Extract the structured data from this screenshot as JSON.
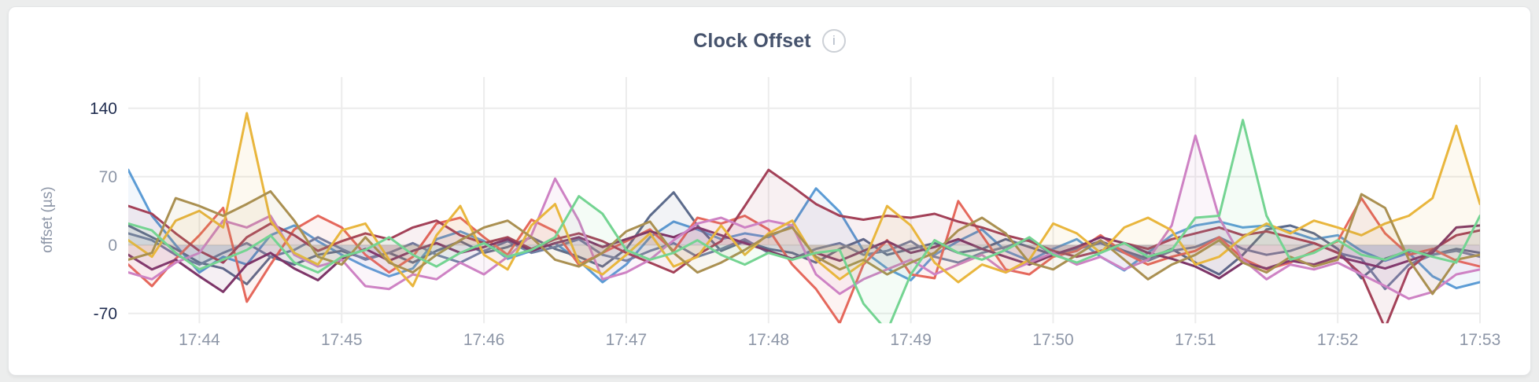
{
  "header": {
    "title": "Clock Offset",
    "info_icon_glyph": "i"
  },
  "page": {
    "background_color": "#eceded",
    "card_color": "#ffffff"
  },
  "chart_data": {
    "type": "line",
    "title": "Clock Offset",
    "xlabel": "",
    "ylabel": "offset (µs)",
    "grid": true,
    "legend": "none",
    "area_fill": true,
    "area_fill_opacity": 0.08,
    "grid_color": "#ececec",
    "x_start_time": "17:43:30",
    "x_interval_seconds": 10,
    "x_ticks": [
      {
        "t": 30,
        "label": "17:44"
      },
      {
        "t": 90,
        "label": "17:45"
      },
      {
        "t": 150,
        "label": "17:46"
      },
      {
        "t": 210,
        "label": "17:47"
      },
      {
        "t": 270,
        "label": "17:48"
      },
      {
        "t": 330,
        "label": "17:49"
      },
      {
        "t": 390,
        "label": "17:50"
      },
      {
        "t": 450,
        "label": "17:51"
      },
      {
        "t": 510,
        "label": "17:52"
      },
      {
        "t": 570,
        "label": "17:53"
      }
    ],
    "y_ticks": [
      {
        "value": 140,
        "label": "140",
        "strong": true
      },
      {
        "value": 70,
        "label": "70",
        "strong": false
      },
      {
        "value": 0,
        "label": "0",
        "strong": false
      },
      {
        "value": -70,
        "label": "-70",
        "strong": true
      }
    ],
    "ylim_visible": [
      -80,
      172
    ],
    "tick_color_strong": "#1f2c4f",
    "tick_color_normal": "#8d96a7",
    "series": [
      {
        "name": "series-1-blue",
        "color": "#5c9cd5",
        "values": [
          77,
          30,
          0,
          -28,
          -12,
          -20,
          10,
          20,
          4,
          -10,
          -22,
          -32,
          -24,
          6,
          14,
          4,
          -14,
          -6,
          2,
          -16,
          -38,
          -20,
          8,
          24,
          16,
          6,
          12,
          8,
          20,
          58,
          34,
          -6,
          -24,
          -36,
          -10,
          4,
          16,
          -6,
          -16,
          -4,
          6,
          -12,
          -26,
          -8,
          10,
          20,
          24,
          18,
          20,
          14,
          6,
          10,
          -6,
          -16,
          -8,
          -32,
          -44,
          -38
        ]
      },
      {
        "name": "series-2-slate",
        "color": "#5c6b8c",
        "values": [
          20,
          8,
          -4,
          -18,
          -24,
          -40,
          -12,
          -20,
          -10,
          -6,
          -14,
          -8,
          -18,
          -6,
          4,
          -8,
          -2,
          8,
          -4,
          -12,
          -22,
          -4,
          30,
          54,
          20,
          -6,
          4,
          -4,
          -8,
          -18,
          -4,
          6,
          -10,
          -4,
          2,
          -8,
          -4,
          6,
          -2,
          -10,
          -4,
          4,
          -6,
          -14,
          -4,
          -18,
          -30,
          -10,
          16,
          20,
          12,
          -4,
          -34,
          -14,
          -6,
          -10,
          -4,
          -8
        ]
      },
      {
        "name": "series-3-steel",
        "color": "#6f7fa3",
        "values": [
          12,
          5,
          -10,
          -20,
          -8,
          2,
          -12,
          -5,
          8,
          -4,
          -15,
          -8,
          2,
          -10,
          -18,
          -6,
          4,
          -8,
          -2,
          6,
          -10,
          -16,
          -6,
          2,
          -12,
          -4,
          6,
          -8,
          -14,
          -4,
          2,
          -10,
          -6,
          4,
          -12,
          -18,
          -8,
          -2,
          6,
          -10,
          -4,
          2,
          -8,
          -16,
          -6,
          -2,
          8,
          -4,
          -10,
          -6,
          2,
          -8,
          -14,
          -45,
          -20,
          -10,
          -6,
          -12
        ]
      },
      {
        "name": "series-4-red",
        "color": "#e5685c",
        "values": [
          -20,
          -42,
          -14,
          10,
          38,
          -58,
          -20,
          16,
          30,
          18,
          -10,
          -28,
          -12,
          22,
          28,
          8,
          -10,
          26,
          14,
          -20,
          -8,
          4,
          16,
          -6,
          28,
          22,
          30,
          16,
          -20,
          -45,
          -80,
          -20,
          5,
          -30,
          -34,
          45,
          10,
          -25,
          -30,
          -12,
          -6,
          10,
          -8,
          -20,
          -12,
          -6,
          8,
          -14,
          -25,
          -18,
          -6,
          4,
          48,
          12,
          -10,
          -4,
          -16,
          -22
        ]
      },
      {
        "name": "series-5-maroon",
        "color": "#a34158",
        "values": [
          40,
          32,
          12,
          -6,
          -18,
          8,
          22,
          10,
          -6,
          4,
          12,
          6,
          18,
          25,
          10,
          2,
          8,
          -4,
          6,
          12,
          4,
          -8,
          -18,
          -28,
          -10,
          4,
          40,
          77,
          60,
          42,
          30,
          26,
          30,
          28,
          32,
          24,
          18,
          10,
          4,
          -6,
          -12,
          -6,
          2,
          -4,
          6,
          12,
          18,
          10,
          14,
          8,
          2,
          -8,
          -30,
          -85,
          -25,
          -5,
          10,
          15
        ]
      },
      {
        "name": "series-6-plum",
        "color": "#7d3568",
        "values": [
          -10,
          -25,
          -15,
          -32,
          -48,
          -20,
          -8,
          -24,
          -36,
          -14,
          -4,
          -16,
          -6,
          2,
          -8,
          -2,
          6,
          -6,
          2,
          8,
          -2,
          6,
          14,
          8,
          18,
          10,
          2,
          -6,
          -14,
          -8,
          -16,
          -6,
          4,
          -8,
          -2,
          6,
          -4,
          -12,
          -20,
          -10,
          -2,
          8,
          2,
          -8,
          -14,
          -22,
          -34,
          -18,
          -24,
          -16,
          -20,
          -12,
          -18,
          -24,
          -16,
          -8,
          18,
          20
        ]
      },
      {
        "name": "series-7-pink",
        "color": "#ce82c4",
        "values": [
          -28,
          -35,
          -18,
          -8,
          25,
          18,
          30,
          -10,
          -22,
          -15,
          -42,
          -45,
          -30,
          -35,
          -18,
          -30,
          -12,
          10,
          68,
          25,
          -35,
          -28,
          -15,
          5,
          22,
          28,
          18,
          25,
          20,
          -30,
          -50,
          -35,
          -25,
          -15,
          -30,
          -20,
          -10,
          -28,
          -18,
          -8,
          -20,
          -12,
          -25,
          -15,
          20,
          112,
          28,
          -15,
          -35,
          -20,
          -25,
          -18,
          -30,
          -42,
          -55,
          -48,
          -30,
          -25
        ]
      },
      {
        "name": "series-8-gold",
        "color": "#e9b63d",
        "values": [
          5,
          -12,
          25,
          35,
          18,
          135,
          25,
          -8,
          -20,
          15,
          22,
          -15,
          -42,
          10,
          40,
          -10,
          -25,
          20,
          42,
          -18,
          -30,
          -10,
          12,
          -22,
          -12,
          20,
          -10,
          12,
          25,
          -15,
          -35,
          -18,
          40,
          20,
          -18,
          -38,
          -20,
          -28,
          -15,
          22,
          12,
          -8,
          18,
          28,
          15,
          -20,
          -12,
          8,
          22,
          12,
          25,
          18,
          10,
          22,
          30,
          48,
          122,
          42
        ]
      },
      {
        "name": "series-9-olive",
        "color": "#aa9051",
        "values": [
          -15,
          -8,
          48,
          40,
          30,
          42,
          55,
          25,
          -12,
          -20,
          8,
          -18,
          -28,
          -10,
          5,
          18,
          25,
          8,
          -15,
          -22,
          -8,
          14,
          24,
          -8,
          -28,
          -18,
          -5,
          10,
          18,
          -12,
          -25,
          -15,
          -30,
          -18,
          -8,
          15,
          28,
          12,
          -18,
          -25,
          -10,
          5,
          -15,
          -35,
          -20,
          -10,
          5,
          -18,
          -28,
          -12,
          -22,
          -15,
          52,
          38,
          -15,
          -50,
          -15,
          -10
        ]
      },
      {
        "name": "series-10-green",
        "color": "#74d492",
        "values": [
          22,
          15,
          -8,
          -25,
          -15,
          -5,
          10,
          -18,
          -28,
          -12,
          -5,
          8,
          -10,
          -22,
          -8,
          2,
          -12,
          -5,
          8,
          50,
          32,
          -5,
          -15,
          -8,
          5,
          -10,
          -20,
          -8,
          -15,
          -8,
          -5,
          -60,
          -88,
          -30,
          5,
          -8,
          -15,
          -5,
          8,
          -10,
          -18,
          -8,
          2,
          -12,
          -5,
          28,
          30,
          128,
          30,
          -15,
          -8,
          5,
          -10,
          -15,
          -5,
          -12,
          -18,
          30
        ]
      }
    ]
  }
}
